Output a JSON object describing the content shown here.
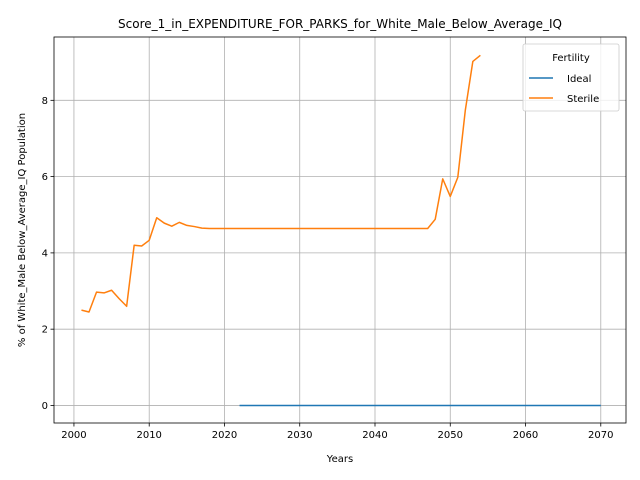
{
  "chart_data": {
    "type": "line",
    "title": "Score_1_in_EXPENDITURE_FOR_PARKS_for_White_Male_Below_Average_IQ",
    "xlabel": "Years",
    "ylabel": "% of White_Male Below_Average_IQ Population",
    "xlim": [
      1997.35,
      2073.35
    ],
    "ylim": [
      -0.46,
      9.66
    ],
    "xticks": [
      2000,
      2010,
      2020,
      2030,
      2040,
      2050,
      2060,
      2070
    ],
    "yticks": [
      0,
      2,
      4,
      6,
      8
    ],
    "grid": true,
    "legend": {
      "title": "Fertility",
      "placement": "top-right"
    },
    "series": [
      {
        "name": "Ideal",
        "color": "#1f77b4",
        "x": [
          2022,
          2070
        ],
        "y": [
          0,
          0
        ]
      },
      {
        "name": "Sterile",
        "color": "#ff7f0e",
        "x": [
          2001,
          2002,
          2003,
          2004,
          2005,
          2006,
          2007,
          2008,
          2009,
          2010,
          2011,
          2012,
          2013,
          2014,
          2015,
          2016,
          2017,
          2018,
          2019,
          2020,
          2030,
          2040,
          2045,
          2046,
          2047,
          2048,
          2049,
          2050,
          2051,
          2052,
          2053,
          2054
        ],
        "y": [
          2.5,
          2.45,
          2.97,
          2.95,
          3.02,
          2.8,
          2.6,
          4.2,
          4.18,
          4.33,
          4.92,
          4.78,
          4.7,
          4.8,
          4.72,
          4.69,
          4.65,
          4.64,
          4.64,
          4.64,
          4.64,
          4.64,
          4.64,
          4.64,
          4.64,
          4.88,
          5.94,
          5.48,
          5.98,
          7.74,
          9.02,
          9.18
        ]
      }
    ]
  }
}
